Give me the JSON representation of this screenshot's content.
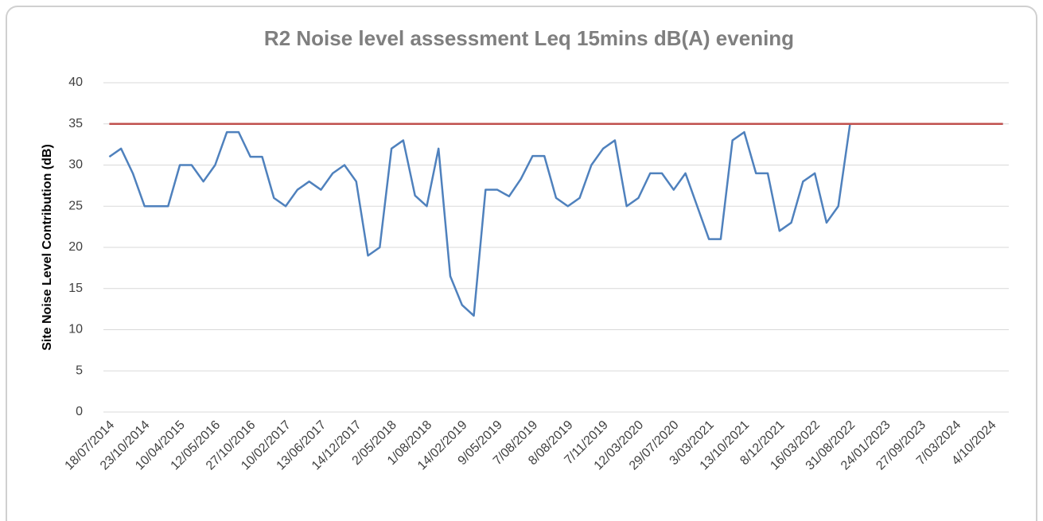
{
  "chart_data": {
    "type": "line",
    "title": "R2 Noise level assessment Leq 15mins dB(A) evening",
    "y_label": "Site Noise Level Contribution (dB)",
    "categories": [
      "18/07/2014",
      null,
      null,
      "23/10/2014",
      null,
      null,
      "10/04/2015",
      null,
      null,
      "12/05/2016",
      null,
      null,
      "27/10/2016",
      null,
      null,
      "10/02/2017",
      null,
      null,
      "13/06/2017",
      null,
      null,
      "14/12/2017",
      null,
      null,
      "2/05/2018",
      null,
      null,
      "1/08/2018",
      null,
      null,
      "14/02/2019",
      null,
      null,
      "9/05/2019",
      null,
      null,
      "7/08/2019",
      null,
      null,
      "8/08/2019",
      null,
      null,
      "7/11/2019",
      null,
      null,
      "12/03/2020",
      null,
      null,
      "29/07/2020",
      null,
      null,
      "3/03/2021",
      null,
      null,
      "13/10/2021",
      null,
      null,
      "8/12/2021",
      null,
      null,
      "16/03/2022",
      null,
      null,
      "31/08/2022",
      null,
      null,
      "24/01/2023",
      null,
      null,
      "27/09/2023",
      null,
      null,
      "7/03/2024",
      null,
      null,
      "4/10/2024",
      null
    ],
    "series": [
      {
        "color": "#4f81bd",
        "values": [
          31,
          32,
          29,
          25,
          25,
          25,
          30,
          30,
          28,
          30,
          34,
          34,
          31,
          31,
          26,
          25,
          27,
          28,
          27,
          29,
          30,
          28,
          19,
          20,
          32,
          33,
          26.3,
          25,
          32,
          16.5,
          13,
          11.7,
          27,
          27,
          26.2,
          28.3,
          31.1,
          31.1,
          26,
          25,
          26,
          30,
          32,
          33,
          25,
          26,
          29,
          29,
          27,
          29,
          25,
          21,
          21,
          33,
          34,
          29,
          29,
          22,
          23,
          28,
          29,
          23,
          25,
          35,
          35,
          35,
          35,
          35,
          35,
          35,
          35,
          35,
          35,
          35,
          35,
          35,
          35
        ]
      },
      {
        "color": "#c0504d",
        "values": [
          35,
          35,
          35,
          35,
          35,
          35,
          35,
          35,
          35,
          35,
          35,
          35,
          35,
          35,
          35,
          35,
          35,
          35,
          35,
          35,
          35,
          35,
          35,
          35,
          35,
          35,
          35,
          35,
          35,
          35,
          35,
          35,
          35,
          35,
          35,
          35,
          35,
          35,
          35,
          35,
          35,
          35,
          35,
          35,
          35,
          35,
          35,
          35,
          35,
          35,
          35,
          35,
          35,
          35,
          35,
          35,
          35,
          35,
          35,
          35,
          35,
          35,
          35,
          35,
          35,
          35,
          35,
          35,
          35,
          35,
          35,
          35,
          35,
          35,
          35,
          35,
          35
        ]
      }
    ],
    "ylim": [
      0,
      40
    ],
    "yticks": [
      0,
      5,
      10,
      15,
      20,
      25,
      30,
      35,
      40
    ],
    "grid": true
  }
}
